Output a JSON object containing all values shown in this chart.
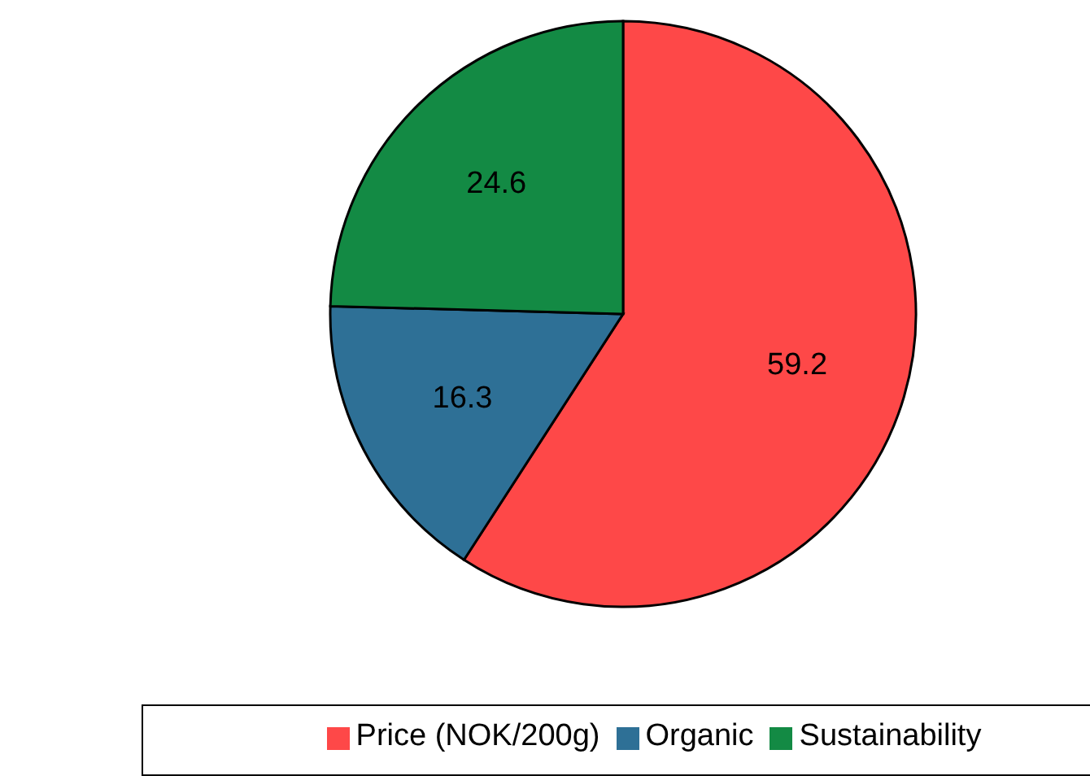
{
  "chart_data": {
    "type": "pie",
    "categories": [
      "Price (NOK/200g)",
      "Organic",
      "Sustainability"
    ],
    "values": [
      59.2,
      16.3,
      24.6
    ],
    "colors": [
      "#fe4848",
      "#2e7096",
      "#138a44"
    ],
    "data_labels": true,
    "legend": "bottom"
  }
}
